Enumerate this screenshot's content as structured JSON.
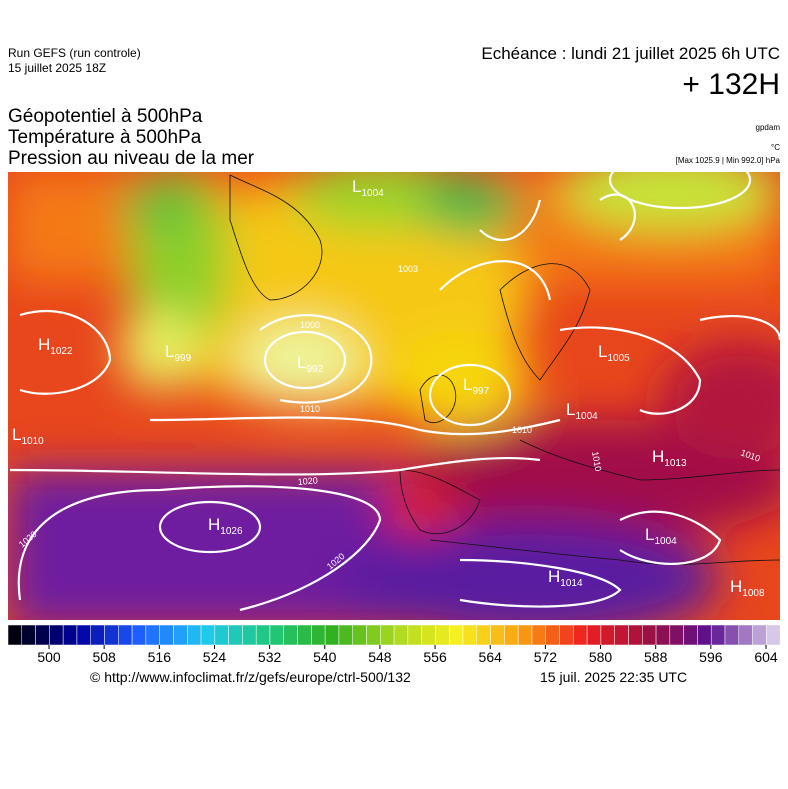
{
  "header": {
    "run": "Run GEFS (run controle)",
    "run_date": "15 juillet 2025 18Z",
    "valid": "Echéance : lundi 21 juillet 2025 6h UTC",
    "lead": "+ 132H"
  },
  "layers": [
    "Géopotentiel à 500hPa",
    "Température à 500hPa",
    "Pression au niveau de la mer"
  ],
  "units": [
    "gpdam",
    "°C",
    "[Max 1025.9 | Min 992.0] hPa"
  ],
  "pressure_centers": [
    {
      "kind": "L",
      "value": "1004"
    },
    {
      "kind": "H",
      "value": "1022"
    },
    {
      "kind": "L",
      "value": "999"
    },
    {
      "kind": "L",
      "value": "992"
    },
    {
      "kind": "L",
      "value": "1010"
    },
    {
      "kind": "H",
      "value": "1026"
    },
    {
      "kind": "L",
      "value": "997"
    },
    {
      "kind": "L",
      "value": "1004"
    },
    {
      "kind": "L",
      "value": "1005"
    },
    {
      "kind": "H",
      "value": "1013"
    },
    {
      "kind": "L",
      "value": "1004"
    },
    {
      "kind": "H",
      "value": "1014"
    },
    {
      "kind": "H",
      "value": "1008"
    }
  ],
  "isobar_labels": [
    "1020",
    "1020",
    "1020",
    "1010",
    "1000",
    "1010",
    "1010",
    "1010",
    "1003"
  ],
  "colorbar": {
    "ticks": [
      500,
      508,
      516,
      524,
      532,
      540,
      548,
      556,
      564,
      572,
      580,
      588,
      596,
      604
    ]
  },
  "footer": {
    "source": "© http://www.infoclimat.fr/z/gefs/europe/ctrl-500/132",
    "generated": "15 juil. 2025 22:35 UTC"
  }
}
